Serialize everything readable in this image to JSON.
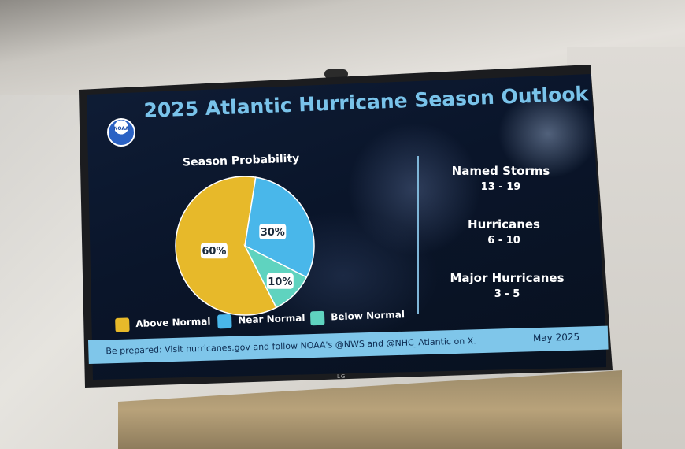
{
  "title": "2025 Atlantic Hurricane Season Outlook",
  "logo_text": "NOAA",
  "chart_data": {
    "type": "pie",
    "title": "Season Probability",
    "categories": [
      "Above Normal",
      "Near Normal",
      "Below Normal"
    ],
    "values": [
      60,
      30,
      10
    ],
    "labels": [
      "60%",
      "30%",
      "10%"
    ],
    "colors": [
      "#e7b92a",
      "#49b7ea",
      "#5fd3bf"
    ],
    "legend_position": "bottom"
  },
  "stats": [
    {
      "label": "Named Storms",
      "value": "13 - 19"
    },
    {
      "label": "Hurricanes",
      "value": "6 - 10"
    },
    {
      "label": "Major Hurricanes",
      "value": "3 - 5"
    }
  ],
  "footer": {
    "text": "Be prepared: Visit hurricanes.gov and follow NOAA's @NWS and @NHC_Atlantic on X.",
    "date": "May 2025"
  },
  "tv_brand": "LG"
}
